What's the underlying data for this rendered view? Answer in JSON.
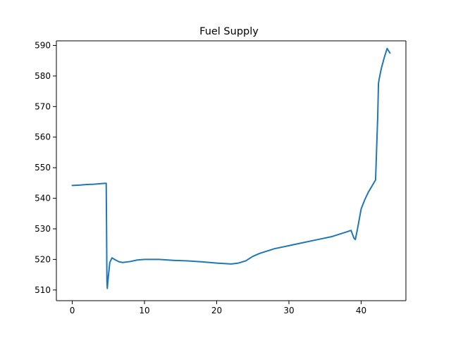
{
  "chart_data": {
    "type": "line",
    "title": "Fuel Supply",
    "xlabel": "",
    "ylabel": "",
    "xlim": [
      -2.2,
      46.2
    ],
    "ylim": [
      506.5,
      591.5
    ],
    "x_ticks": [
      0,
      10,
      20,
      30,
      40
    ],
    "y_ticks": [
      510,
      520,
      530,
      540,
      550,
      560,
      570,
      580,
      590
    ],
    "grid": false,
    "legend": "none",
    "series": [
      {
        "color": "#1f77b4",
        "x": [
          0,
          1,
          2,
          3,
          4,
          4.7,
          4.75,
          4.8,
          4.85,
          5.0,
          5.2,
          5.5,
          6.0,
          6.5,
          7.0,
          8.0,
          9.0,
          10.0,
          12.0,
          14.0,
          16.0,
          18.0,
          20.0,
          22.0,
          23.0,
          24.0,
          25.0,
          26.0,
          28.0,
          30.0,
          32.0,
          34.0,
          36.0,
          38.0,
          38.6,
          39.0,
          39.2,
          39.5,
          40.0,
          40.5,
          41.0,
          41.5,
          42.0,
          42.2,
          42.3,
          42.4,
          42.5,
          42.8,
          43.2,
          43.6,
          44.0
        ],
        "values": [
          544.2,
          544.3,
          544.5,
          544.6,
          544.8,
          544.9,
          530.0,
          513.0,
          510.5,
          514.5,
          519.0,
          520.5,
          519.8,
          519.2,
          519.0,
          519.3,
          519.8,
          520.0,
          520.0,
          519.7,
          519.5,
          519.2,
          518.8,
          518.5,
          518.8,
          519.5,
          521.0,
          522.0,
          523.5,
          524.5,
          525.5,
          526.5,
          527.5,
          529.0,
          529.5,
          527.0,
          526.5,
          530.0,
          536.5,
          539.5,
          542.0,
          544.0,
          546.0,
          560.0,
          567.0,
          577.5,
          579.0,
          582.5,
          586.0,
          589.0,
          587.5
        ]
      }
    ]
  }
}
